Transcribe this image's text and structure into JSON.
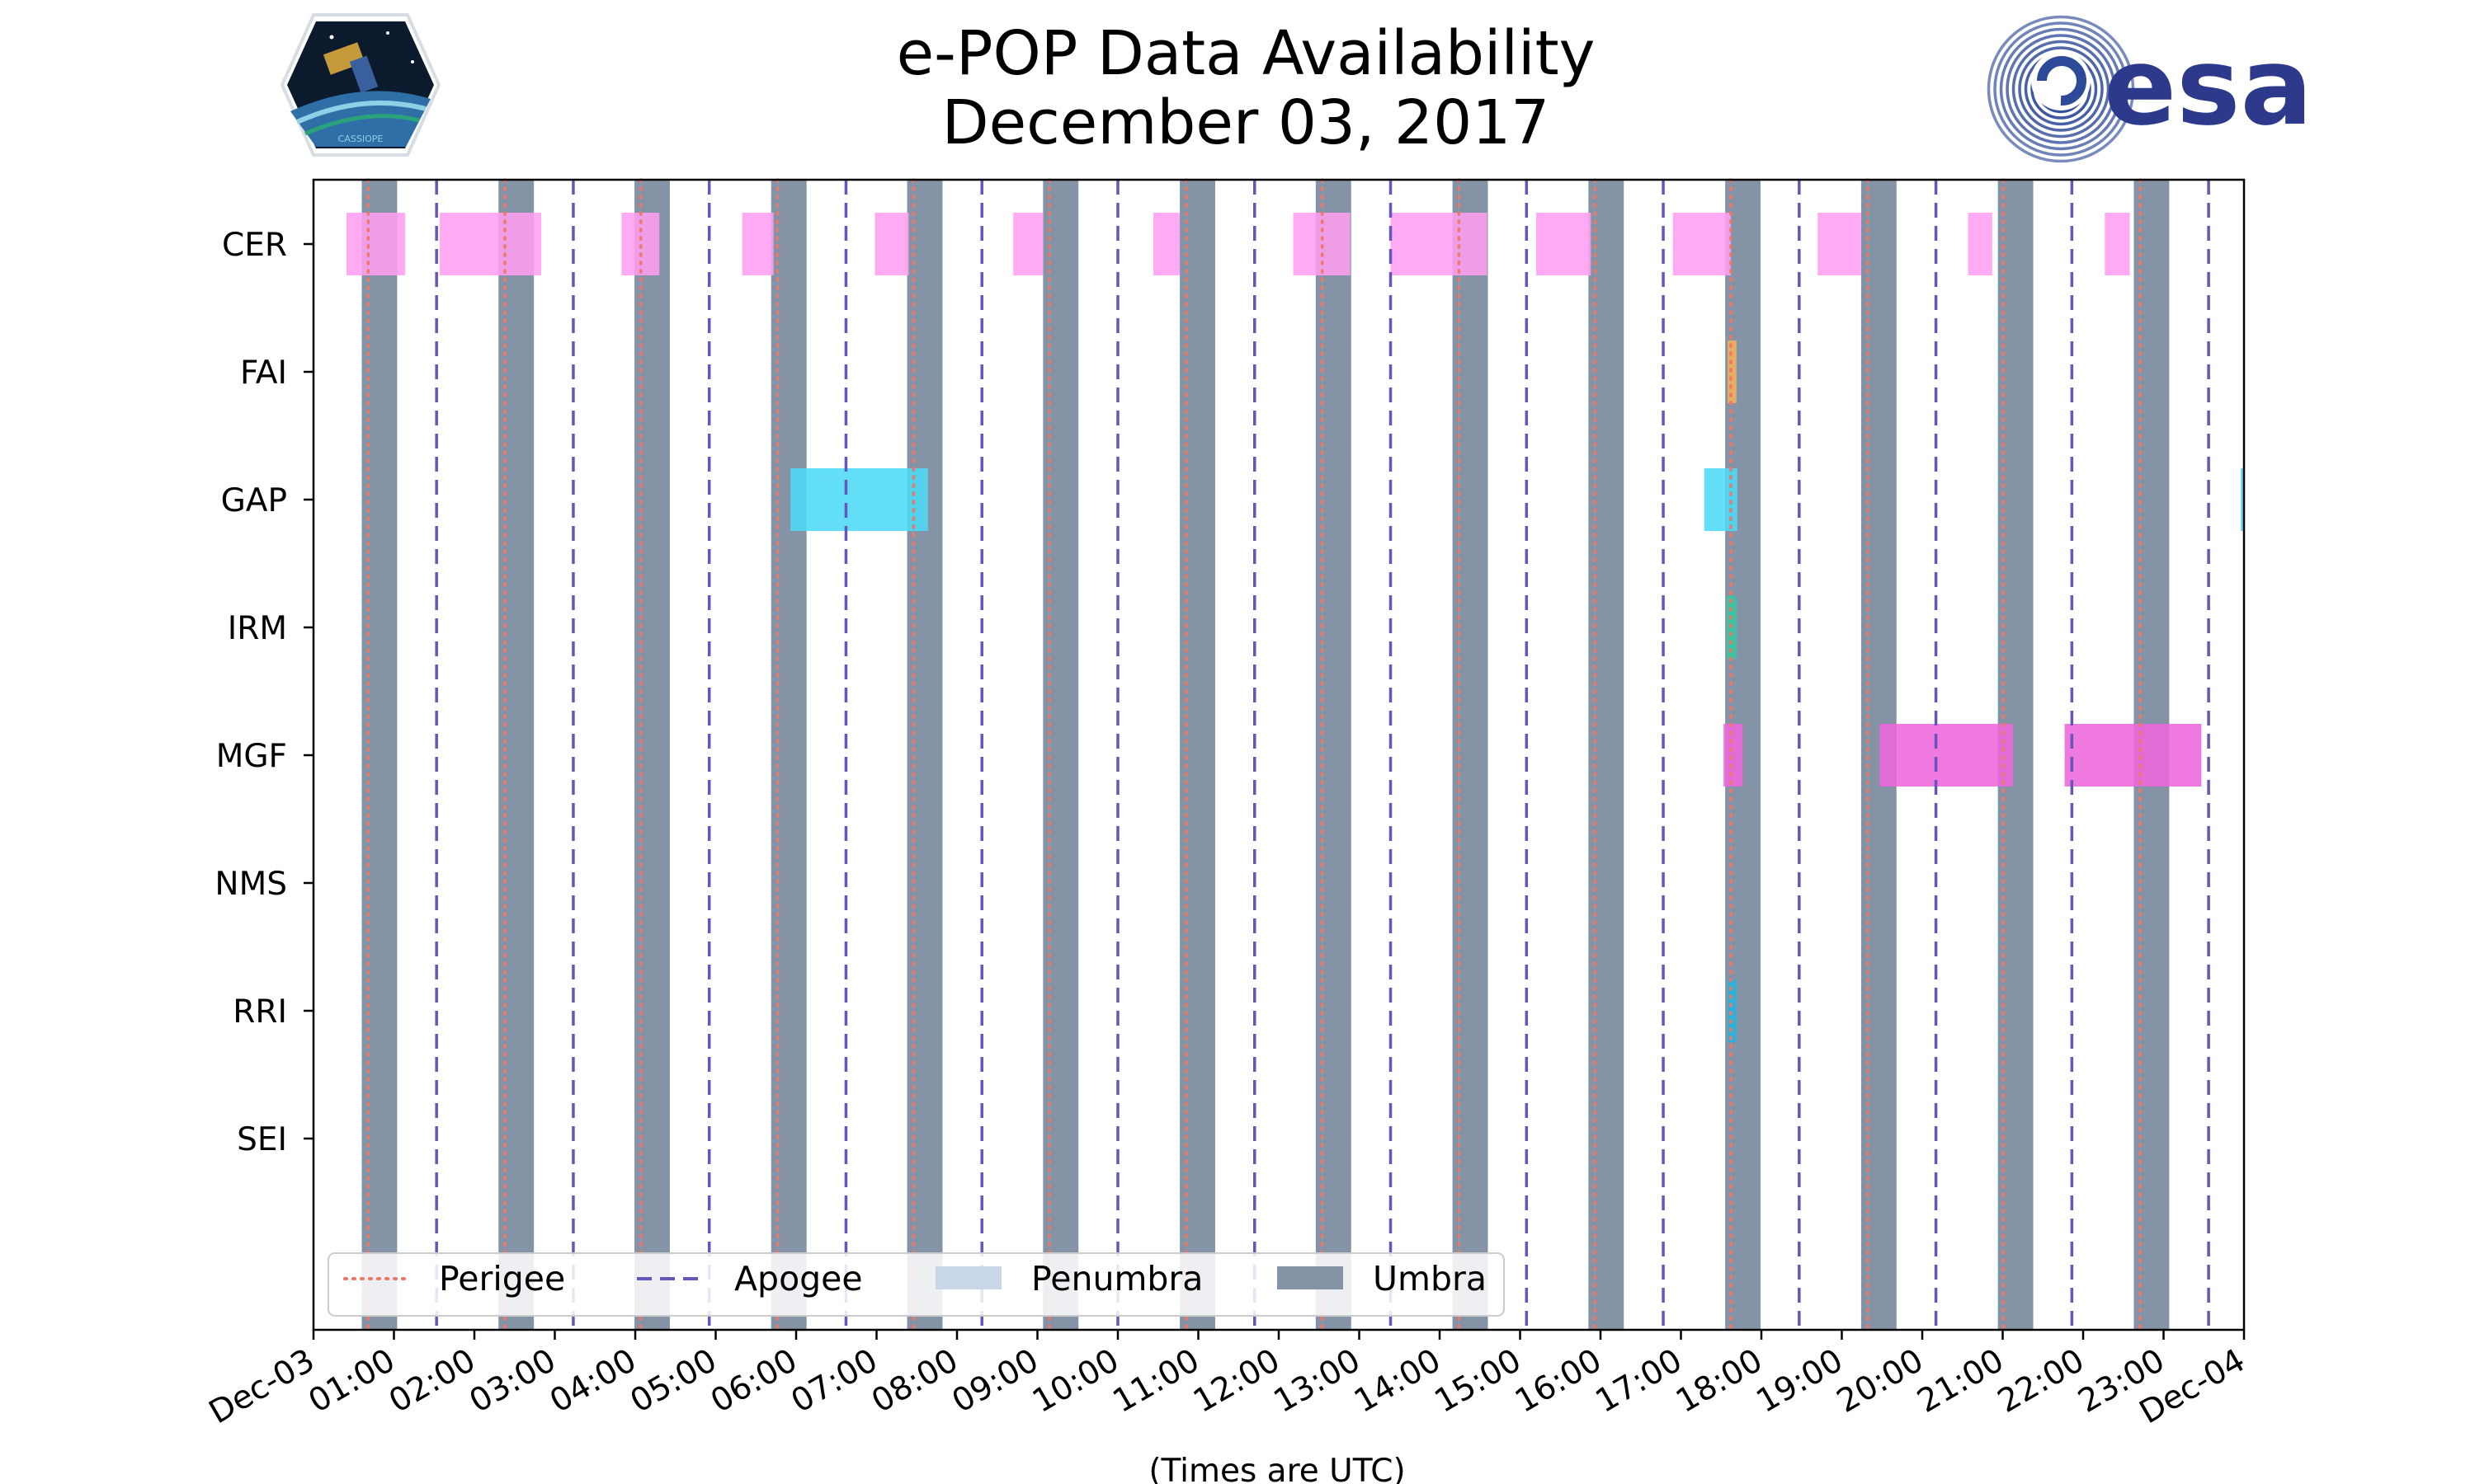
{
  "chart_data": {
    "type": "timeline",
    "title": [
      "e-POP Data Availability",
      "December 03, 2017"
    ],
    "xlabel": "(Times are UTC)",
    "x_tick_labels": [
      "Dec-03",
      "01:00",
      "02:00",
      "03:00",
      "04:00",
      "05:00",
      "06:00",
      "07:00",
      "08:00",
      "09:00",
      "10:00",
      "11:00",
      "12:00",
      "13:00",
      "14:00",
      "15:00",
      "16:00",
      "17:00",
      "18:00",
      "19:00",
      "20:00",
      "21:00",
      "22:00",
      "23:00",
      "Dec-04"
    ],
    "xlim_hours": [
      0,
      24
    ],
    "instruments": [
      "CER",
      "FAI",
      "GAP",
      "IRM",
      "MGF",
      "NMS",
      "RRI",
      "SEI"
    ],
    "perigee_hours": [
      0.68,
      2.38,
      4.07,
      5.77,
      7.46,
      9.15,
      10.85,
      12.54,
      14.24,
      15.93,
      17.62,
      19.32,
      21.01,
      22.71
    ],
    "apogee_hours": [
      1.53,
      3.23,
      4.92,
      6.62,
      8.31,
      10.0,
      11.7,
      13.39,
      15.08,
      16.78,
      18.47,
      20.17,
      21.86,
      23.56
    ],
    "umbra_intervals": [
      [
        0.6,
        1.04
      ],
      [
        2.3,
        2.74
      ],
      [
        3.99,
        4.43
      ],
      [
        5.69,
        6.13
      ],
      [
        7.38,
        7.82
      ],
      [
        9.07,
        9.51
      ],
      [
        10.77,
        11.21
      ],
      [
        12.46,
        12.9
      ],
      [
        14.16,
        14.6
      ],
      [
        15.85,
        16.29
      ],
      [
        17.55,
        17.99
      ],
      [
        19.24,
        19.68
      ],
      [
        20.94,
        21.38
      ],
      [
        22.63,
        23.07
      ]
    ],
    "series": [
      {
        "name": "CER",
        "color": "#ff9ef0",
        "intervals": [
          [
            0.41,
            1.14
          ],
          [
            1.57,
            2.83
          ],
          [
            3.83,
            4.3
          ],
          [
            5.33,
            5.72
          ],
          [
            6.98,
            7.4
          ],
          [
            8.7,
            9.07
          ],
          [
            10.44,
            10.77
          ],
          [
            12.18,
            12.89
          ],
          [
            13.39,
            14.59
          ],
          [
            15.2,
            15.88
          ],
          [
            16.9,
            17.62
          ],
          [
            18.7,
            19.24
          ],
          [
            20.57,
            20.87
          ],
          [
            22.27,
            22.58
          ]
        ]
      },
      {
        "name": "FAI",
        "color": "#f2b25a",
        "intervals": [
          [
            17.58,
            17.69
          ]
        ]
      },
      {
        "name": "GAP",
        "color": "#4dd9f7",
        "intervals": [
          [
            5.93,
            7.64
          ],
          [
            17.29,
            17.7
          ],
          [
            23.96,
            24.0
          ]
        ]
      },
      {
        "name": "IRM",
        "color": "#33c9a0",
        "intervals": [
          [
            17.57,
            17.69
          ]
        ]
      },
      {
        "name": "MGF",
        "color": "#ee66dc",
        "intervals": [
          [
            17.53,
            17.77
          ],
          [
            19.47,
            21.13
          ],
          [
            21.77,
            23.47
          ]
        ]
      },
      {
        "name": "NMS",
        "color": "#888888",
        "intervals": []
      },
      {
        "name": "RRI",
        "color": "#22b5dd",
        "intervals": [
          [
            17.58,
            17.69
          ]
        ]
      },
      {
        "name": "SEI",
        "color": "#888888",
        "intervals": []
      }
    ],
    "legend": {
      "placement": "bottom-left",
      "entries": [
        {
          "label": "Perigee",
          "style": "dotted-line",
          "color": "#ee7766"
        },
        {
          "label": "Apogee",
          "style": "dashed-line",
          "color": "#6655bb"
        },
        {
          "label": "Penumbra",
          "style": "patch",
          "color": "#c9d6e8"
        },
        {
          "label": "Umbra",
          "style": "patch",
          "color": "#8494a6"
        }
      ]
    },
    "colors": {
      "umbra": "#8494a6",
      "perigee": "#ee7766",
      "apogee": "#6655bb"
    }
  },
  "logos": {
    "mission_logo_text": "CASSIOPE",
    "agency_logo_text": "esa"
  }
}
